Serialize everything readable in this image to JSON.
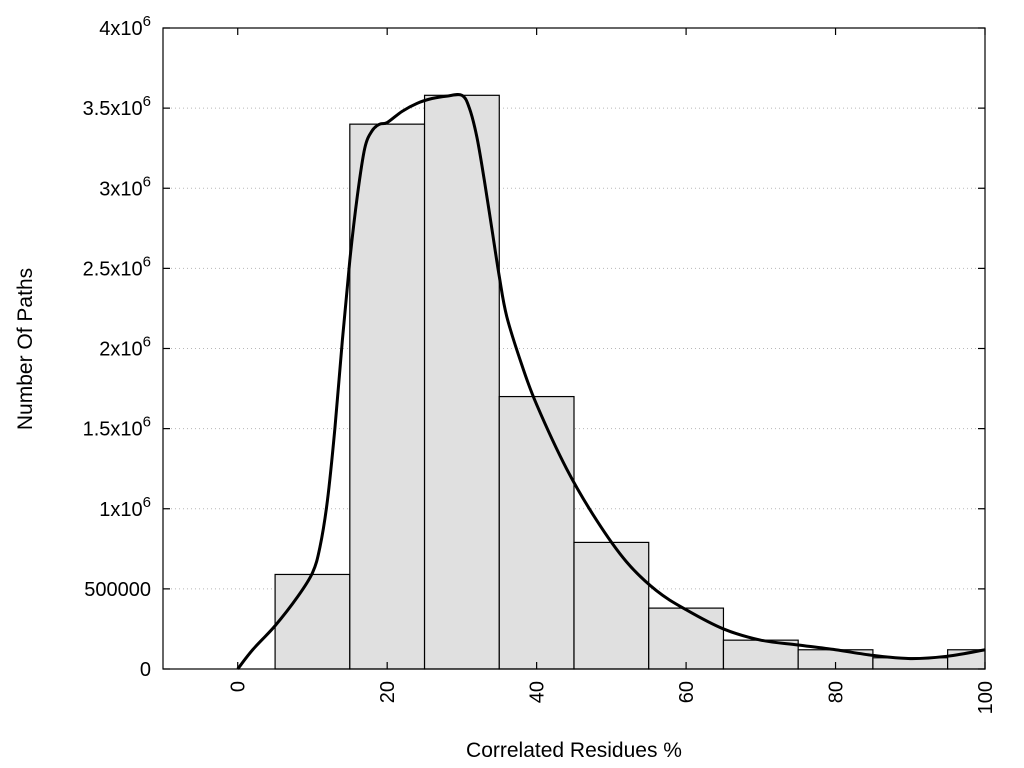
{
  "chart_data": {
    "type": "bar",
    "xlabel": "Correlated Residues %",
    "ylabel": "Number Of Paths",
    "xlim": [
      -10,
      100
    ],
    "ylim": [
      0,
      4000000
    ],
    "grid": "horizontal-dotted",
    "x_ticks": [
      {
        "value": 0,
        "label": "0"
      },
      {
        "value": 20,
        "label": "20"
      },
      {
        "value": 40,
        "label": "40"
      },
      {
        "value": 60,
        "label": "60"
      },
      {
        "value": 80,
        "label": "80"
      },
      {
        "value": 100,
        "label": "100"
      }
    ],
    "y_ticks": [
      {
        "value": 0,
        "label": "0",
        "exp": ""
      },
      {
        "value": 500000,
        "label": "500000",
        "exp": ""
      },
      {
        "value": 1000000,
        "label": "1x10",
        "exp": "6"
      },
      {
        "value": 1500000,
        "label": "1.5x10",
        "exp": "6"
      },
      {
        "value": 2000000,
        "label": "2x10",
        "exp": "6"
      },
      {
        "value": 2500000,
        "label": "2.5x10",
        "exp": "6"
      },
      {
        "value": 3000000,
        "label": "3x10",
        "exp": "6"
      },
      {
        "value": 3500000,
        "label": "3.5x10",
        "exp": "6"
      },
      {
        "value": 4000000,
        "label": "4x10",
        "exp": "6"
      }
    ],
    "bars": [
      {
        "center": 10,
        "width": 10,
        "value": 590000
      },
      {
        "center": 20,
        "width": 10,
        "value": 3400000
      },
      {
        "center": 30,
        "width": 10,
        "value": 3580000
      },
      {
        "center": 40,
        "width": 10,
        "value": 1700000
      },
      {
        "center": 50,
        "width": 10,
        "value": 790000
      },
      {
        "center": 60,
        "width": 10,
        "value": 380000
      },
      {
        "center": 70,
        "width": 10,
        "value": 180000
      },
      {
        "center": 80,
        "width": 10,
        "value": 120000
      },
      {
        "center": 90,
        "width": 10,
        "value": 70000
      },
      {
        "center": 100,
        "width": 10,
        "value": 120000
      }
    ],
    "curve": {
      "x": [
        0,
        2,
        5,
        8,
        10,
        11,
        12,
        13,
        14,
        15,
        16,
        17,
        18,
        19,
        20,
        22,
        24,
        26,
        28,
        30,
        31,
        32,
        33,
        34,
        35,
        36,
        38,
        40,
        44,
        48,
        52,
        56,
        60,
        65,
        70,
        75,
        80,
        85,
        90,
        95,
        100
      ],
      "y": [
        0,
        120000,
        270000,
        450000,
        600000,
        760000,
        1050000,
        1500000,
        2050000,
        2550000,
        2950000,
        3250000,
        3360000,
        3400000,
        3410000,
        3480000,
        3530000,
        3560000,
        3575000,
        3580000,
        3500000,
        3320000,
        3050000,
        2750000,
        2450000,
        2200000,
        1900000,
        1650000,
        1250000,
        930000,
        670000,
        490000,
        370000,
        250000,
        180000,
        150000,
        120000,
        85000,
        65000,
        80000,
        120000
      ]
    }
  }
}
